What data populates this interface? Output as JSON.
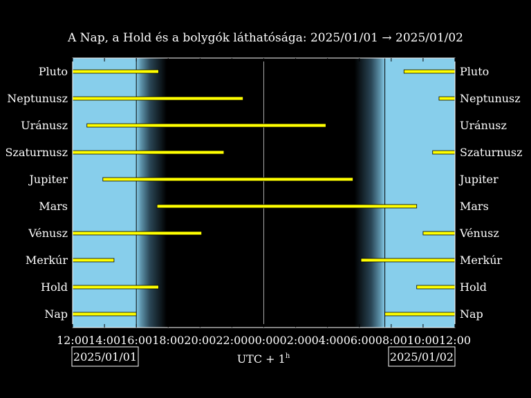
{
  "chart_data": {
    "type": "bar",
    "title": "A Nap, a Hold és a bolygók láthatósága: 2025/01/01 → 2025/01/02",
    "xlabel": "UTC + 1",
    "xlabel_sup": "h",
    "x_ticks": [
      "12:00",
      "14:00",
      "16:00",
      "18:00",
      "20:00",
      "22:00",
      "00:00",
      "02:00",
      "04:00",
      "06:00",
      "08:00",
      "10:00",
      "12:00"
    ],
    "xlim_hours": [
      0,
      24
    ],
    "start_date": "2025/01/01",
    "end_date": "2025/01/02",
    "sunset_hours": 4.0,
    "sunrise_hours": 19.6,
    "midnight_hours": 12,
    "twilight_hours": 1.9,
    "grid": false,
    "colors": {
      "day": "#87ceeb",
      "night": "#000000",
      "bar": "#ffff00",
      "text": "#ffffff"
    },
    "series": [
      {
        "name": "Pluto",
        "segments": [
          [
            0,
            5.4
          ],
          [
            20.8,
            24
          ]
        ]
      },
      {
        "name": "Neptunusz",
        "segments": [
          [
            0,
            10.7
          ],
          [
            23.0,
            24
          ]
        ]
      },
      {
        "name": "Uránusz",
        "segments": [
          [
            0.9,
            15.9
          ]
        ]
      },
      {
        "name": "Szaturnusz",
        "segments": [
          [
            0,
            9.5
          ],
          [
            22.6,
            24
          ]
        ]
      },
      {
        "name": "Jupiter",
        "segments": [
          [
            1.9,
            17.6
          ]
        ]
      },
      {
        "name": "Mars",
        "segments": [
          [
            5.3,
            21.6
          ]
        ]
      },
      {
        "name": "Vénusz",
        "segments": [
          [
            0,
            8.1
          ],
          [
            22.0,
            24
          ]
        ]
      },
      {
        "name": "Merkúr",
        "segments": [
          [
            0,
            2.6
          ],
          [
            18.1,
            24
          ]
        ]
      },
      {
        "name": "Hold",
        "segments": [
          [
            0,
            5.4
          ],
          [
            21.6,
            24
          ]
        ]
      },
      {
        "name": "Nap",
        "segments": [
          [
            0,
            4.0
          ],
          [
            19.6,
            24
          ]
        ]
      }
    ]
  }
}
